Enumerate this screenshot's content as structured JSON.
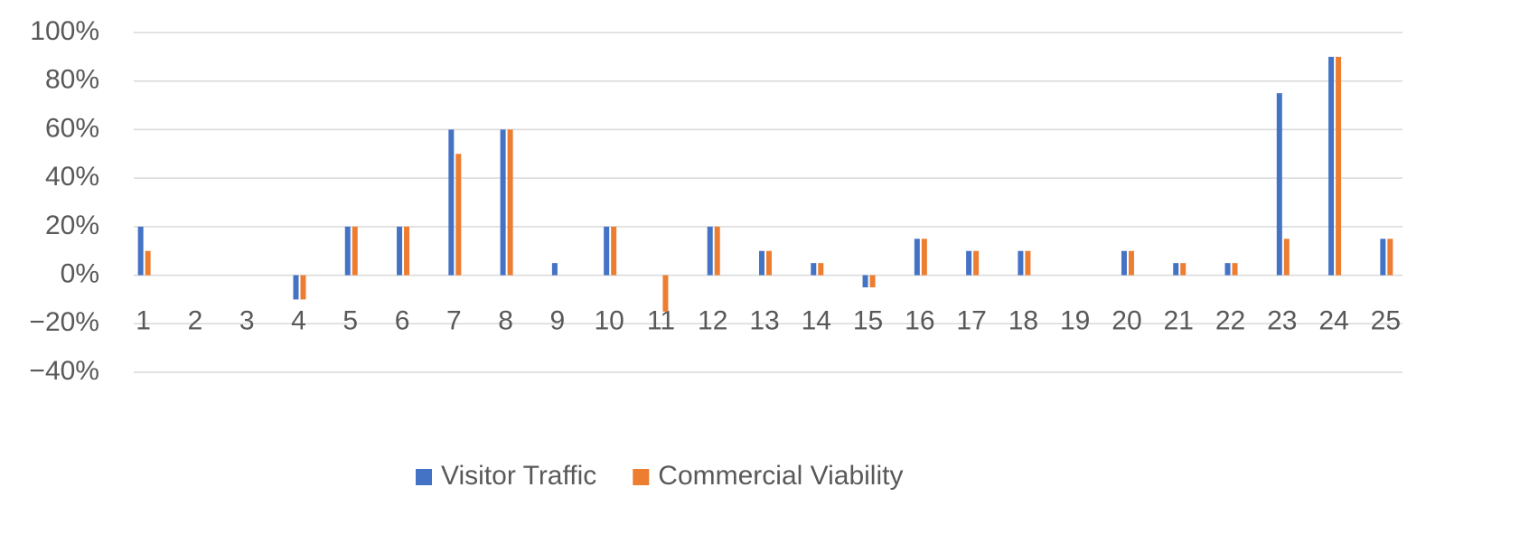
{
  "chart_data": {
    "type": "bar",
    "categories": [
      "1",
      "2",
      "3",
      "4",
      "5",
      "6",
      "7",
      "8",
      "9",
      "10",
      "11",
      "12",
      "13",
      "14",
      "15",
      "16",
      "17",
      "18",
      "19",
      "20",
      "21",
      "22",
      "23",
      "24",
      "25"
    ],
    "series": [
      {
        "name": "Visitor Traffic",
        "color": "#4472c4",
        "values": [
          20,
          0,
          0,
          -10,
          20,
          20,
          60,
          60,
          5,
          20,
          0,
          20,
          10,
          5,
          -5,
          15,
          10,
          10,
          0,
          10,
          5,
          5,
          75,
          90,
          15
        ]
      },
      {
        "name": "Commercial Viability",
        "color": "#ed7d31",
        "values": [
          10,
          0,
          0,
          -10,
          20,
          20,
          50,
          60,
          0,
          20,
          -15,
          20,
          10,
          5,
          -5,
          15,
          10,
          10,
          0,
          10,
          5,
          5,
          15,
          90,
          15
        ]
      }
    ],
    "ylim": [
      -40,
      100
    ],
    "yticks": [
      {
        "value": -40,
        "label": "−40%"
      },
      {
        "value": -20,
        "label": "−20%"
      },
      {
        "value": 0,
        "label": "0%"
      },
      {
        "value": 20,
        "label": "20%"
      },
      {
        "value": 40,
        "label": "40%"
      },
      {
        "value": 60,
        "label": "60%"
      },
      {
        "value": 80,
        "label": "80%"
      },
      {
        "value": 100,
        "label": "100%"
      }
    ],
    "grid": true,
    "legend": "bottom"
  }
}
